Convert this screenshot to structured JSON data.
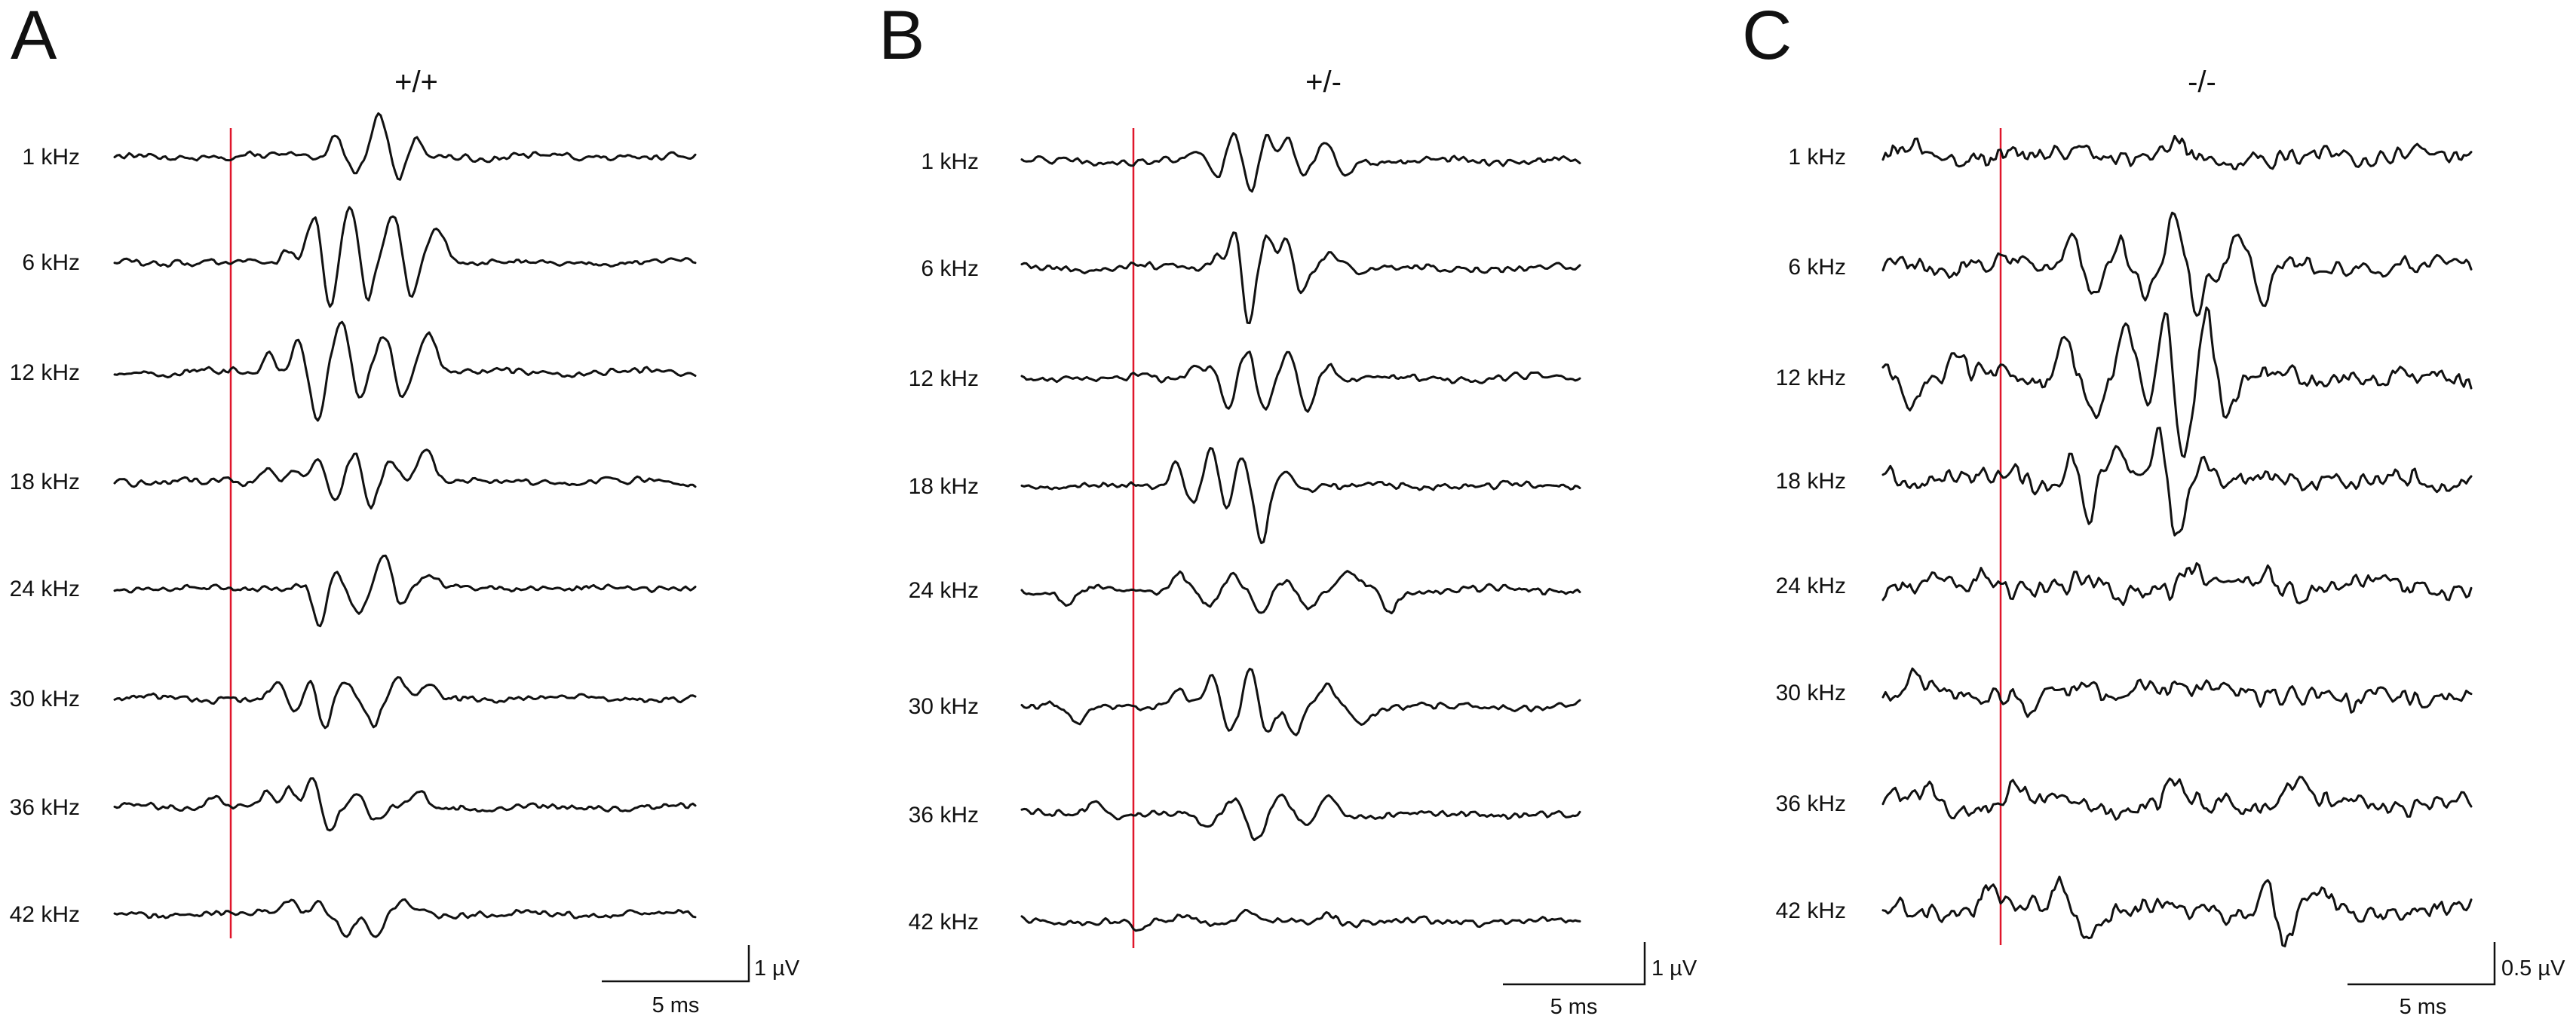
{
  "chart_data": {
    "type": "line",
    "description_units": {
      "x": "ms",
      "y": "µV"
    },
    "frequencies": [
      "1 kHz",
      "6 kHz",
      "12 kHz",
      "18 kHz",
      "24 kHz",
      "30 kHz",
      "36 kHz",
      "42 kHz"
    ],
    "stimulus_onset_ms": 0,
    "trace_window_ms": [
      -4,
      16
    ],
    "colors": {
      "trace": "#111111",
      "stimulus": "#e0162b"
    },
    "panels": [
      {
        "letter": "A",
        "genotype": "+/+",
        "time_scale_label": "5 ms",
        "amp_scale_label": "1 µV",
        "time_scale_ms": 5,
        "amp_scale_uv": 1,
        "noise_uv": 0.07,
        "series": [
          {
            "name": "1 kHz",
            "peaks": [
              [
                3.6,
                0.55,
                0.32
              ],
              [
                4.3,
                -0.35,
                0.3
              ],
              [
                5.1,
                1.0,
                0.35
              ],
              [
                5.8,
                -0.6,
                0.3
              ],
              [
                6.4,
                0.4,
                0.3
              ]
            ]
          },
          {
            "name": "6 kHz",
            "peaks": [
              [
                2.0,
                0.3,
                0.3
              ],
              [
                2.9,
                1.2,
                0.35
              ],
              [
                3.4,
                -1.3,
                0.3
              ],
              [
                4.1,
                1.3,
                0.38
              ],
              [
                4.7,
                -1.0,
                0.3
              ],
              [
                5.6,
                1.1,
                0.4
              ],
              [
                6.2,
                -1.0,
                0.3
              ],
              [
                7.1,
                0.8,
                0.45
              ]
            ]
          },
          {
            "name": "12 kHz",
            "peaks": [
              [
                1.3,
                0.5,
                0.28
              ],
              [
                2.3,
                0.9,
                0.28
              ],
              [
                3.0,
                -1.2,
                0.3
              ],
              [
                3.8,
                1.2,
                0.4
              ],
              [
                4.4,
                -0.8,
                0.3
              ],
              [
                5.3,
                0.9,
                0.35
              ],
              [
                5.9,
                -0.6,
                0.3
              ],
              [
                6.8,
                1.0,
                0.4
              ]
            ]
          },
          {
            "name": "18 kHz",
            "peaks": [
              [
                1.3,
                0.4,
                0.3
              ],
              [
                2.2,
                0.35,
                0.3
              ],
              [
                3.0,
                0.5,
                0.3
              ],
              [
                3.6,
                -0.5,
                0.3
              ],
              [
                4.3,
                0.7,
                0.35
              ],
              [
                4.8,
                -0.7,
                0.3
              ],
              [
                5.5,
                0.5,
                0.35
              ],
              [
                6.7,
                0.8,
                0.4
              ]
            ]
          },
          {
            "name": "24 kHz",
            "peaks": [
              [
                2.7,
                0.3,
                0.3
              ],
              [
                3.0,
                -1.0,
                0.35
              ],
              [
                3.6,
                0.4,
                0.3
              ],
              [
                4.4,
                -0.55,
                0.35
              ],
              [
                5.3,
                0.9,
                0.38
              ],
              [
                5.8,
                -0.5,
                0.3
              ],
              [
                6.8,
                0.35,
                0.4
              ]
            ]
          },
          {
            "name": "30 kHz",
            "peaks": [
              [
                1.6,
                0.45,
                0.3
              ],
              [
                2.2,
                -0.4,
                0.3
              ],
              [
                2.8,
                0.5,
                0.3
              ],
              [
                3.2,
                -0.8,
                0.3
              ],
              [
                4.0,
                0.45,
                0.35
              ],
              [
                4.9,
                -0.6,
                0.3
              ],
              [
                5.8,
                0.5,
                0.35
              ],
              [
                6.8,
                0.3,
                0.35
              ]
            ]
          },
          {
            "name": "36 kHz",
            "peaks": [
              [
                -0.6,
                0.3,
                0.35
              ],
              [
                1.2,
                0.3,
                0.28
              ],
              [
                2.0,
                0.45,
                0.28
              ],
              [
                2.8,
                0.75,
                0.28
              ],
              [
                3.4,
                -0.55,
                0.3
              ],
              [
                4.3,
                0.35,
                0.3
              ],
              [
                5.0,
                -0.35,
                0.3
              ],
              [
                6.5,
                0.3,
                0.4
              ]
            ]
          },
          {
            "name": "42 kHz",
            "peaks": [
              [
                2.0,
                0.35,
                0.35
              ],
              [
                3.0,
                0.3,
                0.35
              ],
              [
                4.0,
                -0.45,
                0.35
              ],
              [
                5.0,
                -0.6,
                0.35
              ],
              [
                6.0,
                0.3,
                0.4
              ]
            ]
          }
        ]
      },
      {
        "letter": "B",
        "genotype": "+/-",
        "time_scale_label": "5 ms",
        "amp_scale_label": "1 µV",
        "time_scale_ms": 5,
        "amp_scale_uv": 1,
        "noise_uv": 0.08,
        "series": [
          {
            "name": "1 kHz",
            "peaks": [
              [
                2.2,
                0.3,
                0.3
              ],
              [
                3.0,
                -0.4,
                0.3
              ],
              [
                3.6,
                0.8,
                0.3
              ],
              [
                4.2,
                -0.7,
                0.3
              ],
              [
                4.8,
                0.6,
                0.3
              ],
              [
                5.5,
                0.6,
                0.3
              ],
              [
                6.1,
                -0.5,
                0.3
              ],
              [
                6.9,
                0.5,
                0.35
              ],
              [
                7.6,
                -0.4,
                0.35
              ]
            ]
          },
          {
            "name": "6 kHz",
            "peaks": [
              [
                3.0,
                0.4,
                0.3
              ],
              [
                3.7,
                1.1,
                0.3
              ],
              [
                4.1,
                -1.6,
                0.3
              ],
              [
                4.8,
                0.8,
                0.3
              ],
              [
                5.5,
                0.7,
                0.3
              ],
              [
                6.0,
                -0.7,
                0.3
              ],
              [
                7.1,
                0.4,
                0.4
              ]
            ]
          },
          {
            "name": "12 kHz",
            "peaks": [
              [
                2.2,
                0.4,
                0.3
              ],
              [
                2.8,
                0.3,
                0.3
              ],
              [
                3.4,
                -0.8,
                0.3
              ],
              [
                4.1,
                0.7,
                0.35
              ],
              [
                4.7,
                -0.9,
                0.35
              ],
              [
                5.6,
                0.7,
                0.35
              ],
              [
                6.2,
                -0.8,
                0.35
              ],
              [
                7.0,
                0.4,
                0.4
              ]
            ]
          },
          {
            "name": "18 kHz",
            "peaks": [
              [
                1.5,
                0.6,
                0.28
              ],
              [
                2.1,
                -0.4,
                0.28
              ],
              [
                2.8,
                1.0,
                0.3
              ],
              [
                3.3,
                -0.6,
                0.3
              ],
              [
                3.9,
                0.7,
                0.3
              ],
              [
                4.6,
                -1.4,
                0.32
              ],
              [
                5.4,
                0.4,
                0.35
              ]
            ]
          },
          {
            "name": "24 kHz",
            "peaks": [
              [
                -2.4,
                -0.4,
                0.4
              ],
              [
                1.6,
                0.45,
                0.35
              ],
              [
                2.7,
                -0.45,
                0.35
              ],
              [
                3.6,
                0.35,
                0.35
              ],
              [
                4.6,
                -0.55,
                0.35
              ],
              [
                5.4,
                0.3,
                0.4
              ],
              [
                6.3,
                -0.5,
                0.35
              ],
              [
                7.8,
                0.45,
                0.4
              ],
              [
                9.2,
                -0.5,
                0.4
              ]
            ]
          },
          {
            "name": "30 kHz",
            "peaks": [
              [
                -2.0,
                -0.5,
                0.4
              ],
              [
                1.6,
                0.35,
                0.35
              ],
              [
                2.8,
                0.7,
                0.3
              ],
              [
                3.5,
                -0.6,
                0.3
              ],
              [
                4.2,
                1.0,
                0.3
              ],
              [
                4.8,
                -0.6,
                0.35
              ],
              [
                5.8,
                -0.7,
                0.35
              ],
              [
                6.9,
                0.5,
                0.35
              ],
              [
                8.2,
                -0.4,
                0.45
              ]
            ]
          },
          {
            "name": "36 kHz",
            "peaks": [
              [
                -1.4,
                0.35,
                0.4
              ],
              [
                2.6,
                -0.3,
                0.35
              ],
              [
                3.6,
                0.45,
                0.35
              ],
              [
                4.4,
                -0.6,
                0.35
              ],
              [
                5.3,
                0.5,
                0.35
              ],
              [
                6.2,
                -0.3,
                0.35
              ],
              [
                7.0,
                0.55,
                0.35
              ]
            ]
          },
          {
            "name": "42 kHz",
            "peaks": [
              [
                0.2,
                -0.3,
                0.35
              ],
              [
                2.0,
                0.2,
                0.4
              ],
              [
                4.0,
                0.25,
                0.4
              ],
              [
                7.0,
                0.2,
                0.4
              ]
            ]
          }
        ]
      },
      {
        "letter": "C",
        "genotype": "-/-",
        "time_scale_label": "5 ms",
        "amp_scale_label": "0.5 µV",
        "time_scale_ms": 5,
        "amp_scale_uv": 0.5,
        "noise_uv": 0.13,
        "series": [
          {
            "name": "1 kHz",
            "peaks": [
              [
                -3.0,
                0.2,
                0.3
              ],
              [
                3.0,
                0.2,
                0.35
              ],
              [
                6.0,
                0.2,
                0.35
              ],
              [
                14.0,
                0.25,
                0.4
              ]
            ]
          },
          {
            "name": "6 kHz",
            "peaks": [
              [
                2.4,
                0.5,
                0.3
              ],
              [
                3.2,
                -0.45,
                0.3
              ],
              [
                4.0,
                0.45,
                0.3
              ],
              [
                5.0,
                -0.5,
                0.3
              ],
              [
                5.9,
                0.9,
                0.3
              ],
              [
                6.7,
                -0.6,
                0.3
              ],
              [
                8.1,
                0.6,
                0.35
              ],
              [
                9.0,
                -0.5,
                0.35
              ]
            ]
          },
          {
            "name": "12 kHz",
            "peaks": [
              [
                -4.2,
                0.4,
                0.35
              ],
              [
                -3.0,
                -0.35,
                0.35
              ],
              [
                -1.5,
                0.4,
                0.35
              ],
              [
                2.2,
                0.7,
                0.3
              ],
              [
                3.2,
                -0.6,
                0.3
              ],
              [
                4.3,
                0.7,
                0.32
              ],
              [
                5.0,
                -0.5,
                0.3
              ],
              [
                5.6,
                1.1,
                0.32
              ],
              [
                6.2,
                -1.3,
                0.32
              ],
              [
                7.0,
                1.2,
                0.3
              ],
              [
                7.7,
                -0.6,
                0.35
              ]
            ]
          },
          {
            "name": "18 kHz",
            "peaks": [
              [
                -4.0,
                0.3,
                0.35
              ],
              [
                0.4,
                0.3,
                0.3
              ],
              [
                2.4,
                0.4,
                0.3
              ],
              [
                3.0,
                -0.6,
                0.3
              ],
              [
                4.0,
                0.45,
                0.3
              ],
              [
                5.4,
                0.8,
                0.3
              ],
              [
                6.0,
                -0.9,
                0.3
              ],
              [
                6.8,
                0.35,
                0.35
              ]
            ]
          },
          {
            "name": "24 kHz",
            "peaks": [
              [
                -0.5,
                0.3,
                0.35
              ],
              [
                4.0,
                -0.3,
                0.35
              ],
              [
                6.5,
                0.3,
                0.35
              ],
              [
                9.0,
                0.25,
                0.35
              ]
            ]
          },
          {
            "name": "30 kHz",
            "peaks": [
              [
                -3.0,
                0.25,
                0.35
              ],
              [
                1.0,
                -0.25,
                0.35
              ],
              [
                5.0,
                0.25,
                0.35
              ],
              [
                12.0,
                -0.25,
                0.35
              ]
            ]
          },
          {
            "name": "36 kHz",
            "peaks": [
              [
                -2.5,
                0.25,
                0.35
              ],
              [
                0.5,
                0.3,
                0.35
              ],
              [
                6.0,
                0.25,
                0.35
              ],
              [
                10.0,
                0.3,
                0.35
              ]
            ]
          },
          {
            "name": "42 kHz",
            "peaks": [
              [
                -0.4,
                0.3,
                0.35
              ],
              [
                2.0,
                0.5,
                0.3
              ],
              [
                3.0,
                -0.3,
                0.35
              ],
              [
                9.0,
                0.5,
                0.3
              ],
              [
                9.7,
                -0.6,
                0.3
              ],
              [
                11.0,
                0.3,
                0.35
              ]
            ]
          }
        ]
      }
    ]
  }
}
